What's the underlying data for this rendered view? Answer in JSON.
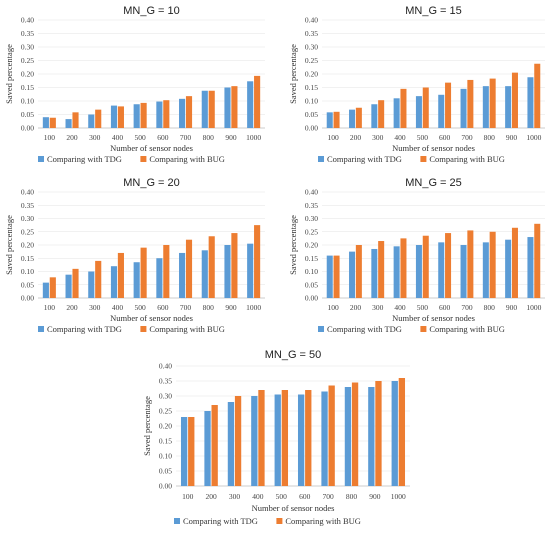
{
  "colors": {
    "tdg": "#5B9BD5",
    "bug": "#ED7D31"
  },
  "chart_data": [
    {
      "type": "bar",
      "title": "MN_G = 10",
      "xlabel": "Number of sensor nodes",
      "ylabel": "Saved percentage",
      "categories": [
        "100",
        "200",
        "300",
        "400",
        "500",
        "600",
        "700",
        "800",
        "900",
        "1000"
      ],
      "yticks": [
        "0.00",
        "0.05",
        "0.10",
        "0.15",
        "0.20",
        "0.25",
        "0.30",
        "0.35",
        "0.40"
      ],
      "ylim": [
        0,
        0.4
      ],
      "grid": true,
      "legend": "bottom",
      "series": [
        {
          "name": "Comparing with TDG",
          "values": [
            0.04,
            0.033,
            0.05,
            0.083,
            0.088,
            0.098,
            0.108,
            0.138,
            0.15,
            0.173
          ]
        },
        {
          "name": "Comparing with BUG",
          "values": [
            0.038,
            0.058,
            0.068,
            0.08,
            0.093,
            0.103,
            0.118,
            0.138,
            0.155,
            0.193
          ]
        }
      ]
    },
    {
      "type": "bar",
      "title": "MN_G = 15",
      "xlabel": "Number of sensor nodes",
      "ylabel": "Saved percentage",
      "categories": [
        "100",
        "200",
        "300",
        "400",
        "500",
        "600",
        "700",
        "800",
        "900",
        "1000"
      ],
      "yticks": [
        "0.00",
        "0.05",
        "0.10",
        "0.15",
        "0.20",
        "0.25",
        "0.30",
        "0.35",
        "0.40"
      ],
      "ylim": [
        0,
        0.4
      ],
      "grid": true,
      "legend": "bottom",
      "series": [
        {
          "name": "Comparing with TDG",
          "values": [
            0.058,
            0.068,
            0.088,
            0.11,
            0.118,
            0.123,
            0.145,
            0.155,
            0.155,
            0.188
          ]
        },
        {
          "name": "Comparing with BUG",
          "values": [
            0.06,
            0.075,
            0.103,
            0.145,
            0.15,
            0.168,
            0.178,
            0.183,
            0.205,
            0.238
          ]
        }
      ]
    },
    {
      "type": "bar",
      "title": "MN_G = 20",
      "xlabel": "Number of sensor nodes",
      "ylabel": "Saved percentage",
      "categories": [
        "100",
        "200",
        "300",
        "400",
        "500",
        "600",
        "700",
        "800",
        "900",
        "1000"
      ],
      "yticks": [
        "0.00",
        "0.05",
        "0.10",
        "0.15",
        "0.20",
        "0.25",
        "0.30",
        "0.35",
        "0.40"
      ],
      "ylim": [
        0,
        0.4
      ],
      "grid": true,
      "legend": "bottom",
      "series": [
        {
          "name": "Comparing with TDG",
          "values": [
            0.058,
            0.088,
            0.1,
            0.12,
            0.135,
            0.15,
            0.17,
            0.18,
            0.2,
            0.205
          ]
        },
        {
          "name": "Comparing with BUG",
          "values": [
            0.078,
            0.11,
            0.14,
            0.17,
            0.19,
            0.2,
            0.22,
            0.233,
            0.245,
            0.275
          ]
        }
      ]
    },
    {
      "type": "bar",
      "title": "MN_G = 25",
      "xlabel": "Number of sensor nodes",
      "ylabel": "Saved percentage",
      "categories": [
        "100",
        "200",
        "300",
        "400",
        "500",
        "600",
        "700",
        "800",
        "900",
        "1000"
      ],
      "yticks": [
        "0.00",
        "0.05",
        "0.10",
        "0.15",
        "0.20",
        "0.25",
        "0.30",
        "0.35",
        "0.40"
      ],
      "ylim": [
        0,
        0.4
      ],
      "grid": true,
      "legend": "bottom",
      "series": [
        {
          "name": "Comparing with TDG",
          "values": [
            0.16,
            0.175,
            0.185,
            0.195,
            0.2,
            0.21,
            0.2,
            0.21,
            0.22,
            0.23
          ]
        },
        {
          "name": "Comparing with BUG",
          "values": [
            0.16,
            0.2,
            0.215,
            0.225,
            0.235,
            0.245,
            0.255,
            0.25,
            0.265,
            0.28
          ]
        }
      ]
    },
    {
      "type": "bar",
      "title": "MN_G = 50",
      "xlabel": "Number of sensor nodes",
      "ylabel": "Saved percentage",
      "categories": [
        "100",
        "200",
        "300",
        "400",
        "500",
        "600",
        "700",
        "800",
        "900",
        "1000"
      ],
      "yticks": [
        "0.00",
        "0.05",
        "0.10",
        "0.15",
        "0.20",
        "0.25",
        "0.30",
        "0.35",
        "0.40"
      ],
      "ylim": [
        0,
        0.4
      ],
      "grid": true,
      "legend": "bottom",
      "series": [
        {
          "name": "Comparing with TDG",
          "values": [
            0.23,
            0.25,
            0.28,
            0.3,
            0.305,
            0.305,
            0.315,
            0.33,
            0.33,
            0.35
          ]
        },
        {
          "name": "Comparing with BUG",
          "values": [
            0.23,
            0.27,
            0.3,
            0.32,
            0.32,
            0.32,
            0.335,
            0.345,
            0.35,
            0.36
          ]
        }
      ]
    }
  ]
}
